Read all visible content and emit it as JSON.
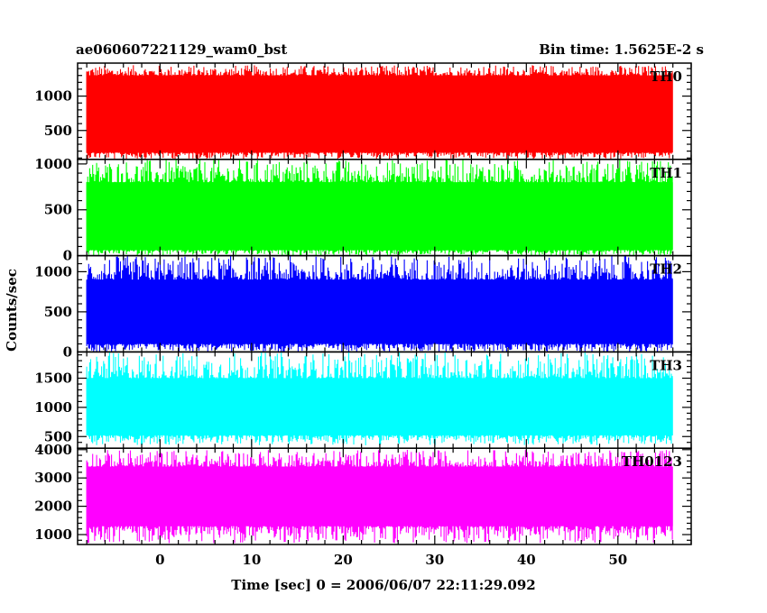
{
  "chart_data": {
    "type": "line",
    "title_left": "ae060607221129_wam0_bst",
    "title_right": "Bin time: 1.5625E-2 s",
    "xlabel": "Time [sec] 0 = 2006/06/07 22:11:29.092",
    "ylabel": "Counts/sec",
    "xlim": [
      -9,
      58
    ],
    "x_data_range": [
      -8,
      56
    ],
    "xticks": [
      0,
      10,
      20,
      30,
      40,
      50
    ],
    "xtick_labels": [
      "0",
      "10",
      "20",
      "30",
      "40",
      "50"
    ],
    "panels": [
      {
        "name": "TH0",
        "label": "TH0",
        "color": "#ff0000",
        "ylim": [
          80,
          1480
        ],
        "yticks": [
          500,
          1000
        ],
        "ytick_labels": [
          "500",
          "1000"
        ],
        "mean": 700,
        "band": [
          180,
          1300
        ],
        "spread": [
          80,
          1450
        ]
      },
      {
        "name": "TH1",
        "label": "TH1",
        "color": "#00ff00",
        "ylim": [
          0,
          1050
        ],
        "yticks": [
          0,
          500,
          1000
        ],
        "ytick_labels": [
          "0",
          "500",
          "1000"
        ],
        "mean": 380,
        "band": [
          60,
          800
        ],
        "spread": [
          0,
          1050
        ]
      },
      {
        "name": "TH2",
        "label": "TH2",
        "color": "#0000ff",
        "ylim": [
          0,
          1200
        ],
        "yticks": [
          0,
          500,
          1000
        ],
        "ytick_labels": [
          "0",
          "500",
          "1000"
        ],
        "mean": 500,
        "band": [
          100,
          900
        ],
        "spread": [
          0,
          1200
        ]
      },
      {
        "name": "TH3",
        "label": "TH3",
        "color": "#00ffff",
        "ylim": [
          300,
          1950
        ],
        "yticks": [
          500,
          1000,
          1500
        ],
        "ytick_labels": [
          "500",
          "1000",
          "1500"
        ],
        "mean": 1000,
        "band": [
          520,
          1500
        ],
        "spread": [
          350,
          1950
        ]
      },
      {
        "name": "TH0123",
        "label": "TH0123",
        "color": "#ff00ff",
        "ylim": [
          650,
          4050
        ],
        "yticks": [
          1000,
          2000,
          3000,
          4000
        ],
        "ytick_labels": [
          "1000",
          "2000",
          "3000",
          "4000"
        ],
        "mean": 2400,
        "band": [
          1300,
          3400
        ],
        "spread": [
          700,
          4000
        ]
      }
    ],
    "grid": false,
    "legend": "none"
  }
}
